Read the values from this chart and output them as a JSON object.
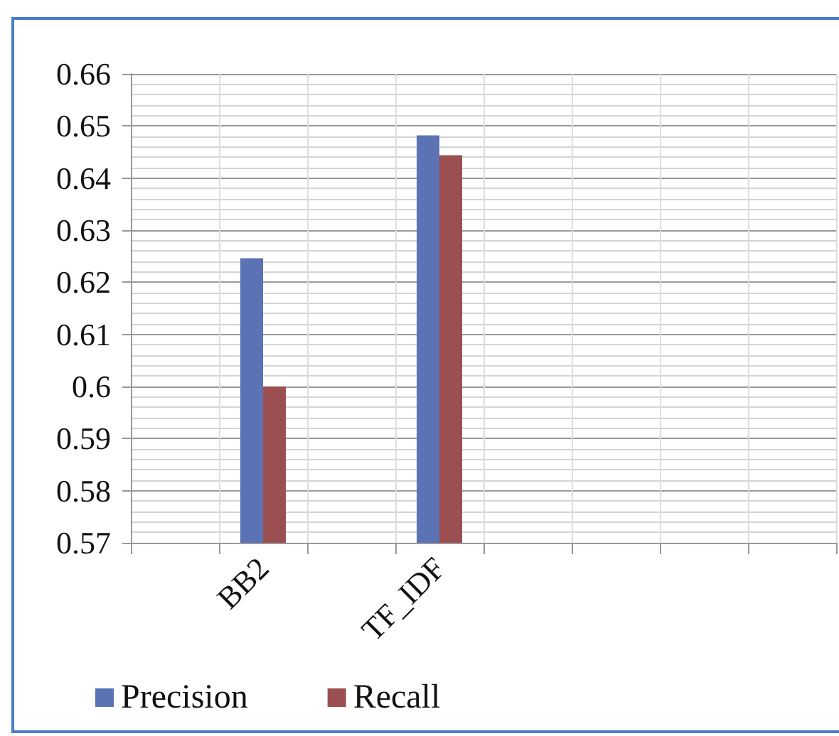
{
  "chart_data": {
    "type": "bar",
    "categories": [
      null,
      "BB2",
      null,
      "TF_IDF",
      null,
      null,
      null,
      null
    ],
    "series": [
      {
        "name": "Precision",
        "color": "#5b73b4",
        "values": [
          null,
          0.6246,
          null,
          0.6482,
          null,
          null,
          null,
          null
        ]
      },
      {
        "name": "Recall",
        "color": "#9b4f50",
        "values": [
          null,
          0.6,
          null,
          0.6444,
          null,
          null,
          null,
          null
        ]
      }
    ],
    "ylim": [
      0.57,
      0.66
    ],
    "yticks": [
      0.57,
      0.58,
      0.59,
      {
        "value": 0.6,
        "label": "0.6"
      },
      0.61,
      0.62,
      0.63,
      0.64,
      0.65,
      0.66
    ],
    "grid": true,
    "legend": "bottom"
  }
}
